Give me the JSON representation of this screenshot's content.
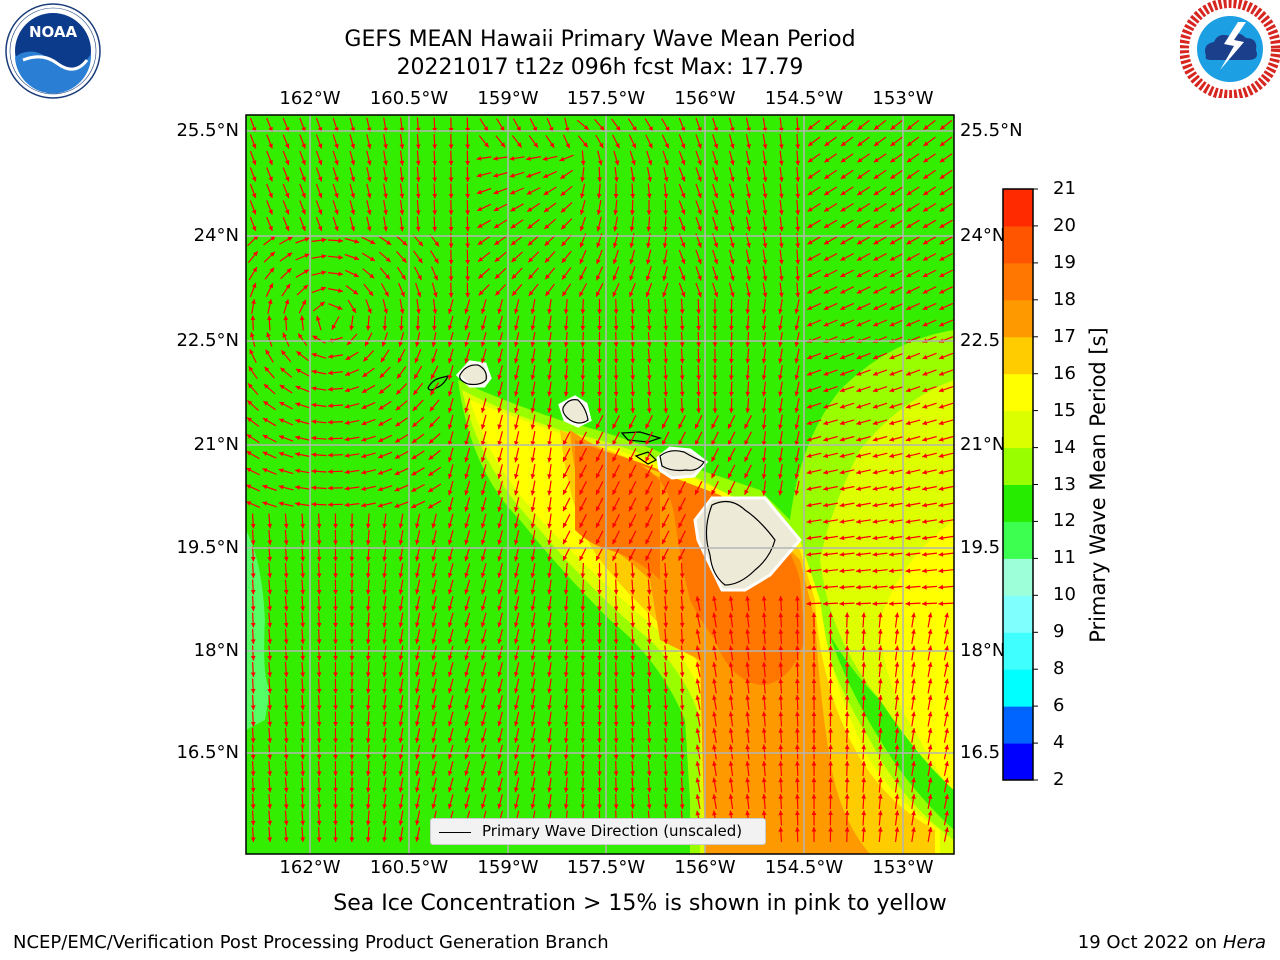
{
  "title": {
    "line1": "GEFS MEAN Hawaii Primary Wave Mean Period",
    "line2": "20221017 t12z 096h fcst   Max: 17.79"
  },
  "axes": {
    "lon_ticks": [
      "162°W",
      "160.5°W",
      "159°W",
      "157.5°W",
      "156°W",
      "154.5°W",
      "153°W"
    ],
    "lat_ticks": [
      "25.5°N",
      "24°N",
      "22.5°N",
      "21°N",
      "19.5°N",
      "18°N",
      "16.5°N"
    ],
    "lat_ticks_right": [
      "25.5°N",
      "24°N",
      "22.5",
      "21°N",
      "19.5",
      "18°N",
      "16.5"
    ]
  },
  "legend": {
    "label": "Primary Wave Direction (unscaled)"
  },
  "colorbar": {
    "title": "Primary Wave Mean Period [s]",
    "ticks": [
      "2",
      "4",
      "6",
      "8",
      "9",
      "10",
      "11",
      "12",
      "13",
      "14",
      "15",
      "16",
      "17",
      "18",
      "19",
      "20",
      "21"
    ],
    "colors": [
      "#0000ff",
      "#0064ff",
      "#00ffff",
      "#40ffff",
      "#80ffff",
      "#9dffd9",
      "#3cff50",
      "#26ed00",
      "#99ff00",
      "#dcff00",
      "#ffff00",
      "#ffcc00",
      "#ff9900",
      "#ff7700",
      "#ff5500",
      "#ff2a00",
      "#ff0000"
    ]
  },
  "note": "Sea Ice Concentration > 15% is shown in pink to yellow",
  "footer": {
    "left": "NCEP/EMC/Verification Post Processing Product Generation Branch",
    "date": "19 Oct 2022 on ",
    "machine": "Hera"
  },
  "logos": {
    "noaa_text": "NOAA",
    "noaa_ring": "NATIONAL OCEANIC AND ATMOSPHERIC ADMINISTRATION · U.S. DEPARTMENT OF COMMERCE",
    "nws_ring": "NATIONAL WEATHER SERVICE"
  },
  "map_colors": {
    "ocean_base": "#33ee00",
    "period_12_13": "#99ff00",
    "period_14_15": "#ddff00",
    "period_15_16": "#ffff00",
    "period_16_17": "#ffcc00",
    "period_17_18": "#ff9900",
    "period_18_19": "#ff7700",
    "land": "#eeead8",
    "arrow": "#ff0000",
    "grid": "#b4b4b4"
  }
}
